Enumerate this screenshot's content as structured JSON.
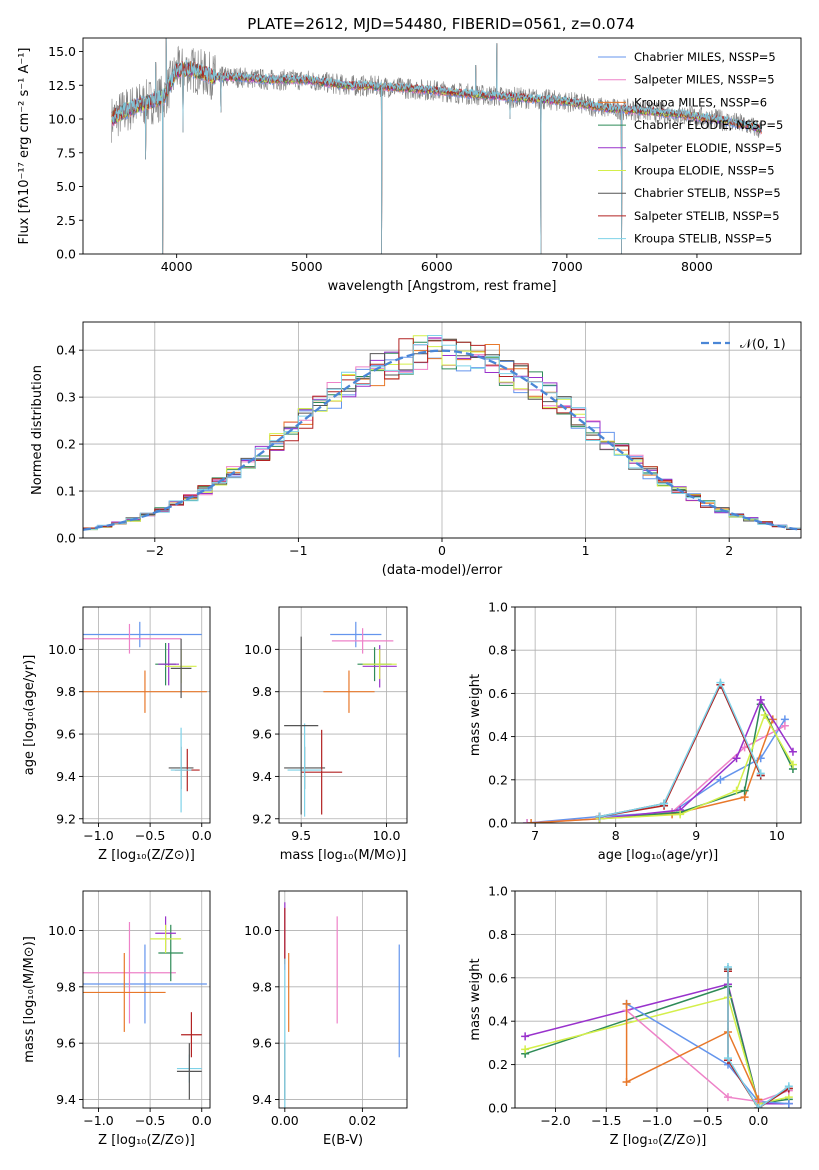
{
  "figure": {
    "title": "PLATE=2612, MJD=54480, FIBERID=0561, z=0.074"
  },
  "chart_data": [
    {
      "id": "spectrum",
      "type": "line",
      "title": "PLATE=2612, MJD=54480, FIBERID=0561, z=0.074",
      "xlabel": "wavelength [Angstrom, rest frame]",
      "ylabel": "Flux [fλ10⁻¹⁷ erg cm⁻² s⁻¹ A⁻¹]",
      "xlim": [
        3280,
        8800
      ],
      "ylim": [
        0,
        16
      ],
      "xticks": [
        "4000",
        "5000",
        "6000",
        "7000",
        "8000"
      ],
      "yticks": [
        "0.0",
        "2.5",
        "5.0",
        "7.5",
        "10.0",
        "12.5",
        "15.0"
      ],
      "legend": "top-right",
      "grid": false,
      "series": [
        {
          "name": "Chabrier MILES, NSSP=5",
          "color": "#6495ed"
        },
        {
          "name": "Salpeter MILES, NSSP=5",
          "color": "#ee82c8"
        },
        {
          "name": "Kroupa MILES, NSSP=6",
          "color": "#e8782a"
        },
        {
          "name": "Chabrier ELODIE, NSSP=5",
          "color": "#2e8b57"
        },
        {
          "name": "Salpeter ELODIE, NSSP=5",
          "color": "#9932cc"
        },
        {
          "name": "Kroupa ELODIE, NSSP=5",
          "color": "#d4ef4a"
        },
        {
          "name": "Chabrier STELIB, NSSP=5",
          "color": "#555555"
        },
        {
          "name": "Salpeter STELIB, NSSP=5",
          "color": "#b22222"
        },
        {
          "name": "Kroupa STELIB, NSSP=5",
          "color": "#7ed2e8"
        }
      ],
      "data_color": "#808080",
      "continuum": {
        "x": [
          3500,
          3600,
          3700,
          3800,
          3900,
          3950,
          4000,
          4100,
          4200,
          4300,
          4500,
          4700,
          5000,
          5300,
          5600,
          6000,
          6300,
          6600,
          7000,
          7300,
          7600,
          7900,
          8200,
          8400,
          8500
        ],
        "y": [
          10.0,
          10.6,
          11.0,
          11.3,
          11.6,
          12.6,
          13.6,
          13.7,
          13.4,
          13.1,
          13.1,
          12.9,
          12.9,
          12.5,
          12.4,
          12.1,
          11.8,
          11.6,
          11.3,
          10.8,
          10.6,
          10.3,
          9.9,
          9.5,
          9.2
        ]
      },
      "spikes": [
        {
          "x": 3760,
          "y": 7.0
        },
        {
          "x": 3840,
          "y": 14.2
        },
        {
          "x": 3892,
          "y": 0.0
        },
        {
          "x": 3920,
          "y": 16.0
        },
        {
          "x": 4050,
          "y": 9.0
        },
        {
          "x": 4340,
          "y": 10.5
        },
        {
          "x": 5577,
          "y": 0.0
        },
        {
          "x": 6300,
          "y": 14.0
        },
        {
          "x": 6460,
          "y": 15.6
        },
        {
          "x": 6563,
          "y": 10.0
        },
        {
          "x": 6800,
          "y": 0.0
        },
        {
          "x": 7420,
          "y": 0.0
        }
      ]
    },
    {
      "id": "residuals",
      "type": "step",
      "xlabel": "(data-model)/error",
      "ylabel": "Normed distribution",
      "xlim": [
        -2.5,
        2.5
      ],
      "ylim": [
        0,
        0.46
      ],
      "xticks": [
        "−2",
        "−1",
        "0",
        "1",
        "2"
      ],
      "yticks": [
        "0.0",
        "0.1",
        "0.2",
        "0.3",
        "0.4"
      ],
      "grid": true,
      "legend": "top-right",
      "gaussian_label": "𝒩(0, 1)",
      "bin_width": 0.1
    },
    {
      "id": "age-vs-z",
      "type": "errorbar",
      "xlabel": "Z [log₁₀(Z/Z⊙)]",
      "ylabel": "age  [log₁₀(age/yr)]",
      "xlim": [
        -1.15,
        0.08
      ],
      "ylim": [
        9.18,
        10.2
      ],
      "xticks": [
        "−1.0",
        "−0.5",
        "0.0"
      ],
      "yticks": [
        "9.2",
        "9.4",
        "9.6",
        "9.8",
        "10.0"
      ],
      "grid": true,
      "points": [
        {
          "x": -0.6,
          "xerr": 0.6,
          "y": 10.07,
          "yerr": 0.06,
          "color": "#6495ed"
        },
        {
          "x": -0.7,
          "xerr": 0.5,
          "y": 10.05,
          "yerr": 0.07,
          "color": "#ee82c8"
        },
        {
          "x": -0.55,
          "xerr": 0.6,
          "y": 9.8,
          "yerr": 0.1,
          "color": "#e8782a"
        },
        {
          "x": -0.35,
          "xerr": 0.1,
          "y": 9.93,
          "yerr": 0.1,
          "color": "#2e8b57"
        },
        {
          "x": -0.32,
          "xerr": 0.1,
          "y": 9.93,
          "yerr": 0.1,
          "color": "#9932cc"
        },
        {
          "x": -0.2,
          "xerr": 0.15,
          "y": 9.92,
          "yerr": 0.08,
          "color": "#d4ef4a"
        },
        {
          "x": -0.2,
          "xerr": 0.12,
          "y": 9.44,
          "yerr": 0.1,
          "color": "#555555"
        },
        {
          "x": -0.14,
          "xerr": 0.12,
          "y": 9.43,
          "yerr": 0.1,
          "color": "#b22222"
        },
        {
          "x": -0.2,
          "xerr": 0.1,
          "y": 9.43,
          "yerr": 0.2,
          "color": "#7ed2e8"
        },
        {
          "x": -0.2,
          "xerr": 0.1,
          "y": 9.91,
          "yerr": 0.14,
          "color": "#555555"
        }
      ]
    },
    {
      "id": "age-vs-mass",
      "type": "errorbar",
      "xlabel": "mass [log₁₀(M/M⊙)]",
      "ylabel": "",
      "xlim": [
        9.37,
        10.12
      ],
      "ylim": [
        9.18,
        10.2
      ],
      "xticks": [
        "9.5",
        "10.0"
      ],
      "yticks": [
        "9.2",
        "9.4",
        "9.6",
        "9.8",
        "10.0"
      ],
      "grid": true,
      "points": [
        {
          "x": 9.82,
          "xerr": 0.15,
          "y": 10.07,
          "yerr": 0.06,
          "color": "#6495ed"
        },
        {
          "x": 9.86,
          "xerr": 0.18,
          "y": 10.04,
          "yerr": 0.06,
          "color": "#ee82c8"
        },
        {
          "x": 9.78,
          "xerr": 0.15,
          "y": 9.8,
          "yerr": 0.1,
          "color": "#e8782a"
        },
        {
          "x": 9.93,
          "xerr": 0.1,
          "y": 9.93,
          "yerr": 0.08,
          "color": "#2e8b57"
        },
        {
          "x": 9.96,
          "xerr": 0.1,
          "y": 9.92,
          "yerr": 0.1,
          "color": "#9932cc"
        },
        {
          "x": 9.96,
          "xerr": 0.1,
          "y": 9.93,
          "yerr": 0.07,
          "color": "#d4ef4a"
        },
        {
          "x": 9.52,
          "xerr": 0.12,
          "y": 9.44,
          "yerr": 0.1,
          "color": "#555555"
        },
        {
          "x": 9.62,
          "xerr": 0.12,
          "y": 9.42,
          "yerr": 0.2,
          "color": "#b22222"
        },
        {
          "x": 9.52,
          "xerr": 0.1,
          "y": 9.43,
          "yerr": 0.22,
          "color": "#7ed2e8"
        },
        {
          "x": 9.5,
          "xerr": 0.1,
          "y": 9.64,
          "yerr": 0.42,
          "color": "#555555"
        }
      ]
    },
    {
      "id": "weight-vs-age",
      "type": "line",
      "xlabel": "age  [log₁₀(age/yr)]",
      "ylabel": "mass weight",
      "xlim": [
        6.75,
        10.3
      ],
      "ylim": [
        0,
        1
      ],
      "xticks": [
        "7",
        "8",
        "9",
        "10"
      ],
      "yticks": [
        "0.0",
        "0.2",
        "0.4",
        "0.6",
        "0.8",
        "1.0"
      ],
      "grid": true,
      "series": [
        {
          "color": "#6495ed",
          "x": [
            6.9,
            7.8,
            8.7,
            9.3,
            9.8,
            10.1
          ],
          "y": [
            0.0,
            0.03,
            0.05,
            0.2,
            0.3,
            0.48
          ]
        },
        {
          "color": "#ee82c8",
          "x": [
            6.9,
            7.8,
            8.7,
            9.6,
            10.1
          ],
          "y": [
            0.0,
            0.02,
            0.05,
            0.35,
            0.45
          ]
        },
        {
          "color": "#e8782a",
          "x": [
            6.95,
            7.8,
            8.7,
            9.6,
            9.95
          ],
          "y": [
            0.0,
            0.02,
            0.04,
            0.12,
            0.48
          ]
        },
        {
          "color": "#2e8b57",
          "x": [
            7.8,
            8.8,
            9.6,
            9.8,
            10.2
          ],
          "y": [
            0.02,
            0.05,
            0.15,
            0.55,
            0.25
          ]
        },
        {
          "color": "#9932cc",
          "x": [
            7.8,
            8.8,
            9.5,
            9.8,
            10.2
          ],
          "y": [
            0.02,
            0.06,
            0.3,
            0.57,
            0.33
          ]
        },
        {
          "color": "#d4ef4a",
          "x": [
            7.8,
            8.8,
            9.5,
            9.85,
            10.2
          ],
          "y": [
            0.02,
            0.04,
            0.15,
            0.5,
            0.27
          ]
        },
        {
          "color": "#555555",
          "x": [
            7.8,
            8.6,
            9.3,
            9.8
          ],
          "y": [
            0.03,
            0.09,
            0.64,
            0.22
          ]
        },
        {
          "color": "#b22222",
          "x": [
            7.8,
            8.6,
            9.3,
            9.8
          ],
          "y": [
            0.03,
            0.08,
            0.64,
            0.22
          ]
        },
        {
          "color": "#7ed2e8",
          "x": [
            7.8,
            8.6,
            9.3,
            9.8
          ],
          "y": [
            0.03,
            0.09,
            0.65,
            0.23
          ]
        }
      ]
    },
    {
      "id": "mass-vs-z",
      "type": "errorbar",
      "xlabel": "Z [log₁₀(Z/Z⊙)]",
      "ylabel": "mass [log₁₀(M/M⊙)]",
      "xlim": [
        -1.15,
        0.08
      ],
      "ylim": [
        9.37,
        10.14
      ],
      "xticks": [
        "−1.0",
        "−0.5",
        "0.0"
      ],
      "yticks": [
        "9.4",
        "9.6",
        "9.8",
        "10.0"
      ],
      "grid": true,
      "points": [
        {
          "x": -0.55,
          "xerr": 0.6,
          "y": 9.81,
          "yerr": 0.14,
          "color": "#6495ed"
        },
        {
          "x": -0.7,
          "xerr": 0.45,
          "y": 9.85,
          "yerr": 0.18,
          "color": "#ee82c8"
        },
        {
          "x": -0.75,
          "xerr": 0.4,
          "y": 9.78,
          "yerr": 0.14,
          "color": "#e8782a"
        },
        {
          "x": -0.3,
          "xerr": 0.12,
          "y": 9.92,
          "yerr": 0.1,
          "color": "#2e8b57"
        },
        {
          "x": -0.35,
          "xerr": 0.1,
          "y": 9.99,
          "yerr": 0.06,
          "color": "#9932cc"
        },
        {
          "x": -0.35,
          "xerr": 0.15,
          "y": 9.97,
          "yerr": 0.05,
          "color": "#d4ef4a"
        },
        {
          "x": -0.1,
          "xerr": 0.1,
          "y": 9.63,
          "yerr": 0.08,
          "color": "#b22222"
        },
        {
          "x": -0.12,
          "xerr": 0.12,
          "y": 9.51,
          "yerr": 0.05,
          "color": "#7ed2e8"
        },
        {
          "x": -0.12,
          "xerr": 0.12,
          "y": 9.5,
          "yerr": 0.1,
          "color": "#555555"
        }
      ]
    },
    {
      "id": "mass-vs-ebv",
      "type": "errorbar",
      "xlabel": "E(B-V)",
      "ylabel": "",
      "xlim": [
        -0.0015,
        0.0315
      ],
      "ylim": [
        9.37,
        10.14
      ],
      "xticks": [
        "0.00",
        "0.02"
      ],
      "yticks": [
        "9.4",
        "9.6",
        "9.8",
        "10.0"
      ],
      "grid": true,
      "points": [
        {
          "x": 0.0,
          "xerr": 0,
          "y": 9.98,
          "yerr": 0.12,
          "color": "#9932cc"
        },
        {
          "x": 0.0,
          "xerr": 0,
          "y": 9.98,
          "yerr": 0.1,
          "color": "#b22222"
        },
        {
          "x": 0.0,
          "xerr": 0,
          "y": 9.5,
          "yerr": 0.1,
          "color": "#555555"
        },
        {
          "x": 0.0,
          "xerr": 0,
          "y": 9.6,
          "yerr": 0.3,
          "color": "#7ed2e8"
        },
        {
          "x": 0.001,
          "xerr": 0,
          "y": 9.78,
          "yerr": 0.14,
          "color": "#e8782a"
        },
        {
          "x": 0.0135,
          "xerr": 0,
          "y": 9.86,
          "yerr": 0.19,
          "color": "#ee82c8"
        },
        {
          "x": 0.0295,
          "xerr": 0,
          "y": 9.75,
          "yerr": 0.2,
          "color": "#6495ed"
        }
      ]
    },
    {
      "id": "weight-vs-z",
      "type": "line",
      "xlabel": "Z [log₁₀(Z/Z⊙)]",
      "ylabel": "mass weight",
      "xlim": [
        -2.4,
        0.42
      ],
      "ylim": [
        0,
        1
      ],
      "xticks": [
        "−2.0",
        "−1.5",
        "−1.0",
        "−0.5",
        "0.0"
      ],
      "yticks": [
        "0.0",
        "0.2",
        "0.4",
        "0.6",
        "0.8",
        "1.0"
      ],
      "grid": true,
      "series": [
        {
          "color": "#9932cc",
          "x": [
            -2.3,
            -0.3,
            0.0,
            0.3
          ],
          "y": [
            0.33,
            0.57,
            0.02,
            0.02
          ]
        },
        {
          "color": "#2e8b57",
          "x": [
            -2.3,
            -0.3,
            0.0,
            0.3
          ],
          "y": [
            0.25,
            0.56,
            0.02,
            0.04
          ]
        },
        {
          "color": "#d4ef4a",
          "x": [
            -2.3,
            -0.3,
            0.0,
            0.3
          ],
          "y": [
            0.27,
            0.51,
            0.02,
            0.05
          ]
        },
        {
          "color": "#6495ed",
          "x": [
            -1.3,
            -0.3,
            0.0,
            0.3
          ],
          "y": [
            0.48,
            0.2,
            0.03,
            0.02
          ]
        },
        {
          "color": "#ee82c8",
          "x": [
            -1.3,
            -0.3,
            0.0,
            0.3
          ],
          "y": [
            0.45,
            0.05,
            0.03,
            0.08
          ]
        },
        {
          "color": "#e8782a",
          "x": [
            -1.3,
            -1.3,
            -0.3,
            0.0
          ],
          "y": [
            0.48,
            0.12,
            0.35,
            0.04
          ]
        },
        {
          "color": "#555555",
          "x": [
            -0.3,
            -0.3,
            0.0,
            0.3
          ],
          "y": [
            0.64,
            0.22,
            0.0,
            0.09
          ]
        },
        {
          "color": "#b22222",
          "x": [
            -0.3,
            -0.3,
            0.0,
            0.3
          ],
          "y": [
            0.63,
            0.22,
            0.0,
            0.09
          ]
        },
        {
          "color": "#7ed2e8",
          "x": [
            -0.3,
            -0.3,
            0.0,
            0.3
          ],
          "y": [
            0.65,
            0.23,
            0.0,
            0.1
          ]
        }
      ]
    }
  ]
}
